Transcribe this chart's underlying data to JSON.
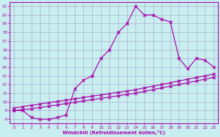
{
  "xlabel": "Windchill (Refroidissement éolien,°C)",
  "bg_color": "#c8eef0",
  "line_color": "#aa00aa",
  "grid_color": "#aaaacc",
  "xlim": [
    -0.5,
    23.5
  ],
  "ylim": [
    7.5,
    21.5
  ],
  "xticks": [
    0,
    1,
    2,
    3,
    4,
    5,
    6,
    7,
    8,
    9,
    10,
    11,
    12,
    13,
    14,
    15,
    16,
    17,
    18,
    19,
    20,
    21,
    22,
    23
  ],
  "yticks": [
    8,
    9,
    10,
    11,
    12,
    13,
    14,
    15,
    16,
    17,
    18,
    19,
    20,
    21
  ],
  "line1_x": [
    0,
    1,
    2,
    3,
    4,
    5,
    6,
    7,
    8,
    9,
    10,
    11,
    12,
    13,
    14,
    15,
    16,
    17,
    18,
    19,
    20,
    21,
    22,
    23
  ],
  "line1_y": [
    9.0,
    9.0,
    8.2,
    8.0,
    8.0,
    8.2,
    8.5,
    11.5,
    12.5,
    13.0,
    15.0,
    16.0,
    18.0,
    19.0,
    21.0,
    20.0,
    20.0,
    19.5,
    19.2,
    15.0,
    13.8,
    15.0,
    14.8,
    14.0
  ],
  "line2_x": [
    0,
    1,
    2,
    3,
    4,
    5,
    6,
    7,
    8,
    9,
    10,
    11,
    12,
    13,
    14,
    15,
    16,
    17,
    18,
    19,
    20,
    21,
    22,
    23
  ],
  "line2_y": [
    9.0,
    9.1,
    9.2,
    9.35,
    9.5,
    9.65,
    9.8,
    9.95,
    10.1,
    10.25,
    10.4,
    10.55,
    10.7,
    10.85,
    11.0,
    11.2,
    11.4,
    11.6,
    11.8,
    12.0,
    12.2,
    12.4,
    12.6,
    12.8
  ],
  "line3_x": [
    0,
    1,
    2,
    3,
    4,
    5,
    6,
    7,
    8,
    9,
    10,
    11,
    12,
    13,
    14,
    15,
    16,
    17,
    18,
    19,
    20,
    21,
    22,
    23
  ],
  "line3_y": [
    9.3,
    9.45,
    9.6,
    9.75,
    9.9,
    10.05,
    10.2,
    10.35,
    10.5,
    10.65,
    10.8,
    10.95,
    11.1,
    11.25,
    11.4,
    11.6,
    11.8,
    12.0,
    12.2,
    12.4,
    12.6,
    12.8,
    13.0,
    13.2
  ]
}
